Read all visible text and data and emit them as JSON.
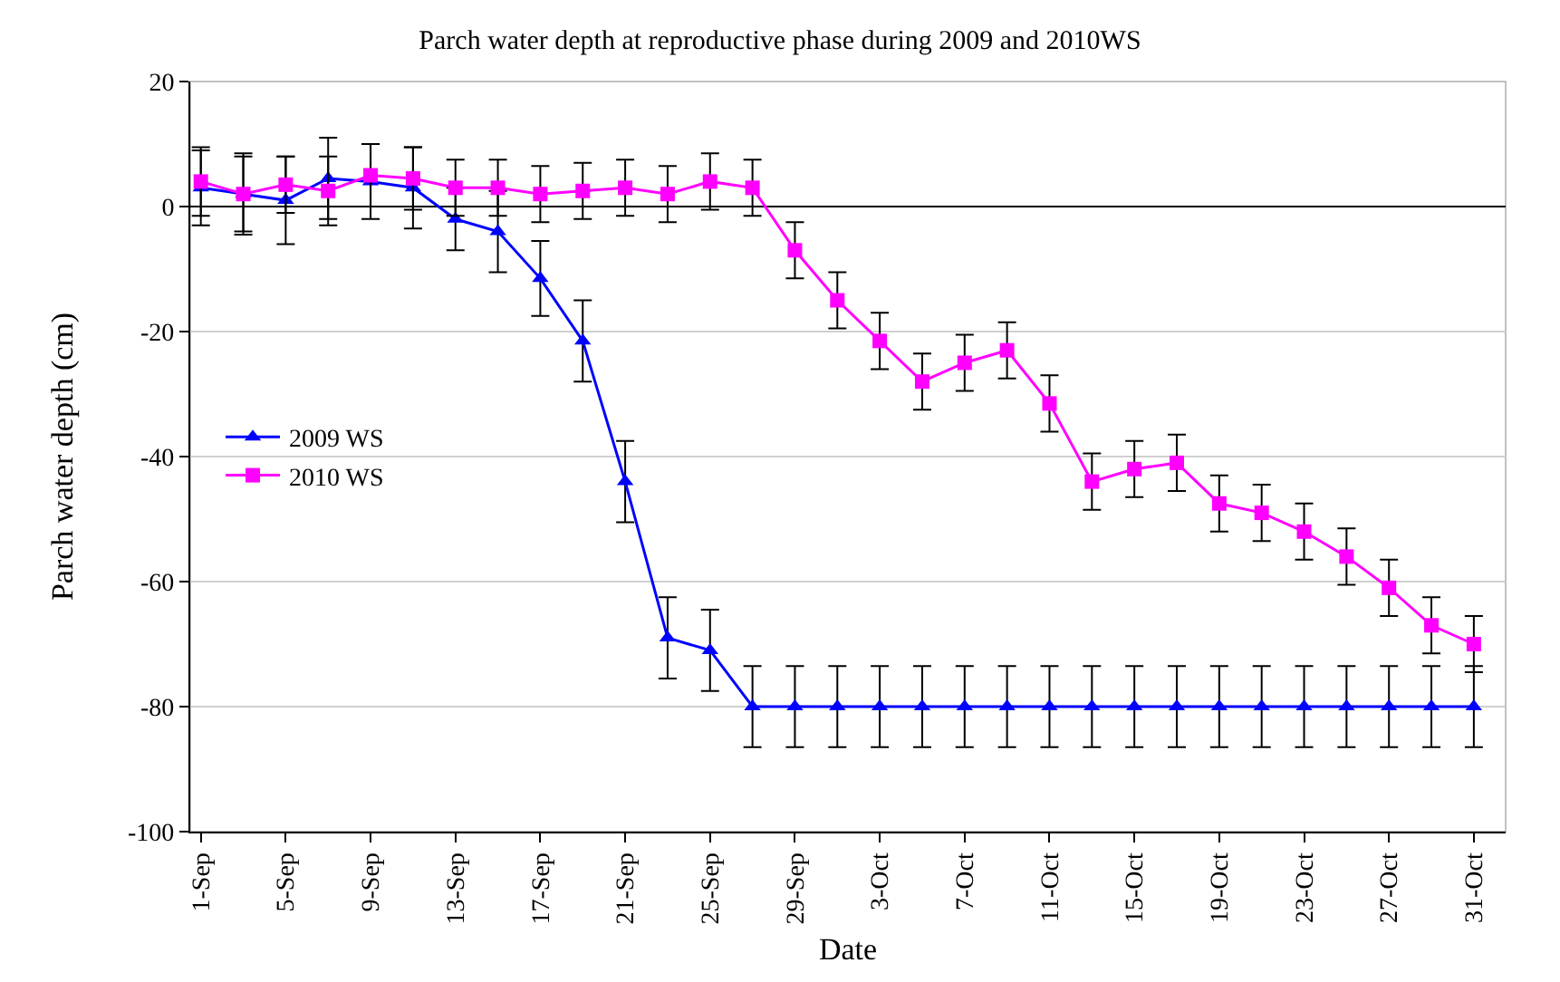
{
  "chart_data": {
    "type": "line",
    "title": "Parch water depth at reproductive phase during 2009 and 2010WS",
    "xlabel": "Date",
    "ylabel": "Parch water depth (cm)",
    "x": [
      "--09-01",
      "--09-03",
      "--09-05",
      "--09-07",
      "--09-09",
      "--09-11",
      "--09-13",
      "--09-15",
      "--09-17",
      "--09-19",
      "--09-21",
      "--09-23",
      "--09-25",
      "--09-27",
      "--09-29",
      "--10-01",
      "--10-03",
      "--10-05",
      "--10-07",
      "--10-09",
      "--10-11",
      "--10-13",
      "--10-15",
      "--10-17",
      "--10-19",
      "--10-21",
      "--10-23",
      "--10-25",
      "--10-27",
      "--10-29",
      "--10-31"
    ],
    "series": [
      {
        "name": "2009 WS",
        "color": "#0000ff",
        "marker": "triangle",
        "values": [
          3,
          2,
          1,
          4.5,
          4,
          3,
          -2,
          -4,
          -11.5,
          -21.5,
          -44,
          -69,
          -71,
          -80,
          -80,
          -80,
          -80,
          -80,
          -80,
          -80,
          -80,
          -80,
          -80,
          -80,
          -80,
          -80,
          -80,
          -80,
          -80,
          -80,
          -80
        ],
        "errors": [
          6,
          6,
          7,
          6.5,
          6,
          6.5,
          5,
          6.5,
          6,
          6.5,
          6.5,
          6.5,
          6.5,
          6.5,
          6.5,
          6.5,
          6.5,
          6.5,
          6.5,
          6.5,
          6.5,
          6.5,
          6.5,
          6.5,
          6.5,
          6.5,
          6.5,
          6.5,
          6.5,
          6.5,
          6.5
        ]
      },
      {
        "name": "2010 WS",
        "color": "#ff00ff",
        "marker": "square",
        "values": [
          4,
          2,
          3.5,
          2.5,
          5,
          4.5,
          3,
          3,
          2,
          2.5,
          3,
          2,
          4,
          3,
          -7,
          -15,
          -21.5,
          -28,
          -25,
          -23,
          -31.5,
          -44,
          -42,
          -41,
          -47.5,
          -49,
          -52,
          -56,
          -61,
          -67,
          -70
        ],
        "errors": [
          5.5,
          6.5,
          4.5,
          5.5,
          5,
          5,
          4.5,
          4.5,
          4.5,
          4.5,
          4.5,
          4.5,
          4.5,
          4.5,
          4.5,
          4.5,
          4.5,
          4.5,
          4.5,
          4.5,
          4.5,
          4.5,
          4.5,
          4.5,
          4.5,
          4.5,
          4.5,
          4.5,
          4.5,
          4.5,
          4.5
        ]
      }
    ],
    "xlim": [
      "--08-31T12:00",
      "--11-01T12:00"
    ],
    "xticks": [
      {
        "value": "--09-01",
        "label": "1-Sep"
      },
      {
        "value": "--09-05",
        "label": "5-Sep"
      },
      {
        "value": "--09-09",
        "label": "9-Sep"
      },
      {
        "value": "--09-13",
        "label": "13-Sep"
      },
      {
        "value": "--09-17",
        "label": "17-Sep"
      },
      {
        "value": "--09-21",
        "label": "21-Sep"
      },
      {
        "value": "--09-25",
        "label": "25-Sep"
      },
      {
        "value": "--09-29",
        "label": "29-Sep"
      },
      {
        "value": "--10-03",
        "label": "3-Oct"
      },
      {
        "value": "--10-07",
        "label": "7-Oct"
      },
      {
        "value": "--10-11",
        "label": "11-Oct"
      },
      {
        "value": "--10-15",
        "label": "15-Oct"
      },
      {
        "value": "--10-19",
        "label": "19-Oct"
      },
      {
        "value": "--10-23",
        "label": "23-Oct"
      },
      {
        "value": "--10-27",
        "label": "27-Oct"
      },
      {
        "value": "--10-31",
        "label": "31-Oct"
      }
    ],
    "ylim": [
      -100,
      20
    ],
    "yticks": [
      -100,
      -80,
      -60,
      -40,
      -20,
      0,
      20
    ],
    "grid": "y",
    "legend": "left",
    "line_style": "solid"
  }
}
